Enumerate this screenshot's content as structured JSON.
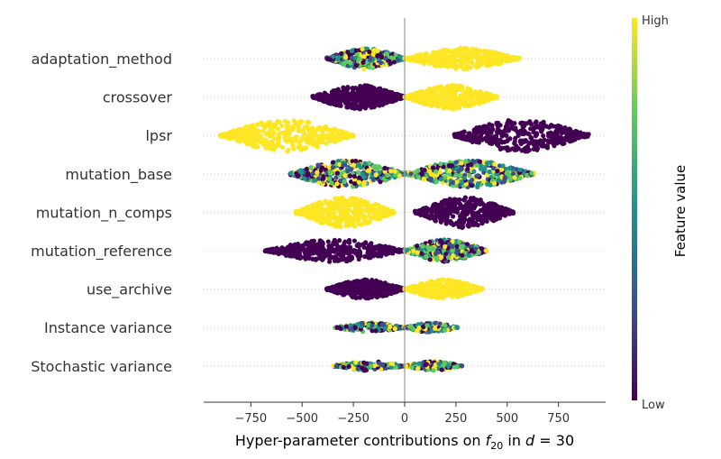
{
  "chart_data": {
    "type": "scatter",
    "subtype": "beeswarm",
    "xlabel": {
      "prefix": "Hyper-parameter contributions on ",
      "func": "f",
      "sub": "20",
      "middle": " in ",
      "dim": "d",
      "suffix": " = 30"
    },
    "xlim": [
      -980,
      980
    ],
    "xticks": [
      -750,
      -500,
      -250,
      0,
      250,
      500,
      750
    ],
    "xtick_labels": [
      "−750",
      "−500",
      "−250",
      "0",
      "250",
      "500",
      "750"
    ],
    "colorbar": {
      "title": "Feature value",
      "high_label": "High",
      "low_label": "Low",
      "colormap": "viridis",
      "colors": [
        "#440154",
        "#3b528b",
        "#21918c",
        "#5ec962",
        "#fde725"
      ]
    },
    "features": [
      {
        "name": "adaptation_method",
        "pattern": "bipolar",
        "low_range": [
          -380,
          0
        ],
        "high_range": [
          0,
          560
        ],
        "low_color": "mix",
        "high_color": "#fde725",
        "width": 0.65
      },
      {
        "name": "crossover",
        "pattern": "bipolar",
        "low_range": [
          -450,
          0
        ],
        "high_range": [
          0,
          450
        ],
        "low_color": "#440154",
        "high_color": "#fde725",
        "width": 0.75
      },
      {
        "name": "lpsr",
        "pattern": "bipolar",
        "low_range": [
          -900,
          -250
        ],
        "high_range": [
          240,
          900
        ],
        "low_color": "#fde725",
        "high_color": "#440154",
        "width": 1.0
      },
      {
        "name": "mutation_base",
        "pattern": "mixed",
        "low_range": [
          -560,
          0
        ],
        "high_range": [
          0,
          630
        ],
        "low_color": "mix",
        "high_color": "mix",
        "width": 0.85
      },
      {
        "name": "mutation_n_comps",
        "pattern": "bipolar",
        "low_range": [
          -530,
          -50
        ],
        "high_range": [
          50,
          530
        ],
        "low_color": "#fde725",
        "high_color": "#440154",
        "width": 0.95
      },
      {
        "name": "mutation_reference",
        "pattern": "mixed",
        "low_range": [
          -680,
          0
        ],
        "high_range": [
          0,
          400
        ],
        "low_color": "#440154",
        "high_color": "mix",
        "width": 0.7
      },
      {
        "name": "use_archive",
        "pattern": "bipolar",
        "low_range": [
          -380,
          0
        ],
        "high_range": [
          0,
          380
        ],
        "low_color": "#440154",
        "high_color": "#fde725",
        "width": 0.6
      },
      {
        "name": "Instance variance",
        "pattern": "thin",
        "low_range": [
          -340,
          0
        ],
        "high_range": [
          0,
          260
        ],
        "low_color": "mix",
        "high_color": "mix",
        "width": 0.3
      },
      {
        "name": "Stochastic variance",
        "pattern": "thin",
        "low_range": [
          -350,
          0
        ],
        "high_range": [
          0,
          280
        ],
        "low_color": "mix",
        "high_color": "mix",
        "width": 0.3
      }
    ]
  }
}
